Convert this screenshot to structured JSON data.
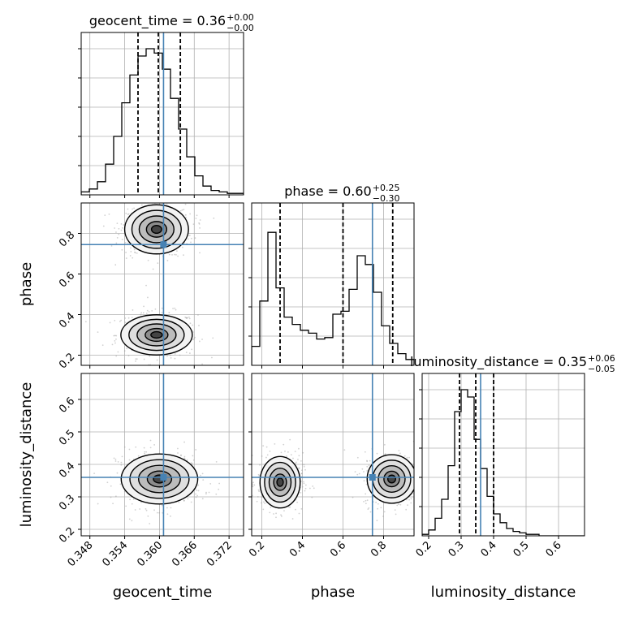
{
  "colors": {
    "truth": "#4682b4",
    "hist": "#000000",
    "grid": "#b0b0b0",
    "scatter": "#9a9a9a"
  },
  "chart_data": {
    "type": "corner",
    "parameters": [
      {
        "name": "geocent_time",
        "median": "0.36",
        "plus": "+0.00",
        "minus": "−0.00",
        "range": [
          0.3465,
          0.3745
        ],
        "truth": 0.3607,
        "quantiles": [
          0.3563,
          0.3598,
          0.3636
        ],
        "ticks": [
          0.348,
          0.354,
          0.36,
          0.366,
          0.372
        ],
        "tick_labels": [
          "0.348",
          "0.354",
          "0.360",
          "0.366",
          "0.372"
        ],
        "hist_x0": 0.3465,
        "hist_dx": 0.0014,
        "hist_values": [
          0.02,
          0.04,
          0.09,
          0.21,
          0.4,
          0.63,
          0.82,
          0.95,
          1.0,
          0.97,
          0.86,
          0.66,
          0.45,
          0.26,
          0.13,
          0.06,
          0.03,
          0.02,
          0.01,
          0.01
        ]
      },
      {
        "name": "phase",
        "median": "0.60",
        "plus": "+0.25",
        "minus": "−0.30",
        "range": [
          0.15,
          0.95
        ],
        "truth": 0.745,
        "quantiles": [
          0.29,
          0.6,
          0.845
        ],
        "ticks": [
          0.2,
          0.4,
          0.6,
          0.8
        ],
        "tick_labels": [
          "0.2",
          "0.4",
          "0.6",
          "0.8"
        ],
        "hist_x0": 0.15,
        "hist_dx": 0.04,
        "hist_values": [
          0.13,
          0.44,
          0.91,
          0.53,
          0.33,
          0.28,
          0.24,
          0.22,
          0.18,
          0.19,
          0.35,
          0.37,
          0.52,
          0.75,
          0.69,
          0.5,
          0.27,
          0.15,
          0.08,
          0.04
        ]
      },
      {
        "name": "luminosity_distance",
        "median": "0.35",
        "plus": "+0.06",
        "minus": "−0.05",
        "range": [
          0.18,
          0.68
        ],
        "truth": 0.36,
        "quantiles": [
          0.295,
          0.345,
          0.4
        ],
        "ticks": [
          0.2,
          0.3,
          0.4,
          0.5,
          0.6
        ],
        "tick_labels": [
          "0.2",
          "0.3",
          "0.4",
          "0.5",
          "0.6"
        ],
        "hist_x0": 0.18,
        "hist_dx": 0.02,
        "hist_values": [
          0.01,
          0.04,
          0.12,
          0.25,
          0.48,
          0.85,
          1.0,
          0.95,
          0.66,
          0.46,
          0.27,
          0.15,
          0.09,
          0.05,
          0.03,
          0.02,
          0.01,
          0.01,
          0.0,
          0.0,
          0.0,
          0.0,
          0.0,
          0.0,
          0.0
        ]
      }
    ],
    "pairs": [
      {
        "x": 0,
        "y": 1,
        "modes": [
          {
            "cx": 0.3595,
            "cy": 0.3,
            "sx": 0.0028,
            "sy": 0.045
          },
          {
            "cx": 0.3595,
            "cy": 0.82,
            "sx": 0.0025,
            "sy": 0.055
          }
        ]
      },
      {
        "x": 0,
        "y": 2,
        "modes": [
          {
            "cx": 0.36,
            "cy": 0.355,
            "sx": 0.003,
            "sy": 0.035
          }
        ]
      },
      {
        "x": 1,
        "y": 2,
        "modes": [
          {
            "cx": 0.29,
            "cy": 0.345,
            "sx": 0.045,
            "sy": 0.036
          },
          {
            "cx": 0.84,
            "cy": 0.355,
            "sx": 0.055,
            "sy": 0.034
          }
        ]
      }
    ],
    "grid": true
  }
}
